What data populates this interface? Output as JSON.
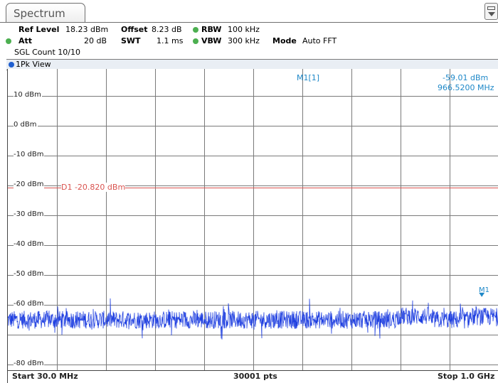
{
  "tab": {
    "title": "Spectrum"
  },
  "settings": {
    "ref_level_label": "Ref Level",
    "ref_level_value": "18.23 dBm",
    "offset_label": "Offset",
    "offset_value": "8.23 dB",
    "rbw_label": "RBW",
    "rbw_value": "100 kHz",
    "att_label": "Att",
    "att_value": "20 dB",
    "swt_label": "SWT",
    "swt_value": "1.1 ms",
    "vbw_label": "VBW",
    "vbw_value": "300 kHz",
    "mode_label": "Mode",
    "mode_value": "Auto FFT",
    "sgl_count": "SGL Count 10/10",
    "indicator_color": "#4caf50"
  },
  "view": {
    "label": "1Pk View"
  },
  "marker": {
    "name": "M1[1]",
    "level": "-59.01 dBm",
    "freq": "966.5200 MHz",
    "flag": "M1",
    "color": "#1e88c8"
  },
  "display_line": {
    "label": "D1  -20.820 dBm",
    "color": "#d9534f"
  },
  "footer": {
    "start": "Start 30.0 MHz",
    "points": "30001 pts",
    "stop": "Stop 1.0 GHz"
  },
  "chart_data": {
    "type": "line",
    "x_range_mhz": [
      30.0,
      1000.0
    ],
    "ylim": [
      -80,
      20
    ],
    "yticks": [
      {
        "label": "10 dBm",
        "value": 10
      },
      {
        "label": "0 dBm",
        "value": 0
      },
      {
        "label": "-10 dBm",
        "value": -10
      },
      {
        "label": "-20 dBm",
        "value": -20
      },
      {
        "label": "-30 dBm",
        "value": -30
      },
      {
        "label": "-40 dBm",
        "value": -40
      },
      {
        "label": "-50 dBm",
        "value": -50
      },
      {
        "label": "-60 dBm",
        "value": -60
      },
      {
        "label": "-80 dBm",
        "value": -80
      }
    ],
    "x_divisions": 10,
    "grid": true,
    "series": [
      {
        "color": "#1f3fe0",
        "noise_floor_dbm": -65,
        "peak_dbm": -59.01
      }
    ],
    "display_line_dbm": -20.82,
    "marker": {
      "x_mhz": 966.52,
      "y_dbm": -59.01
    }
  }
}
